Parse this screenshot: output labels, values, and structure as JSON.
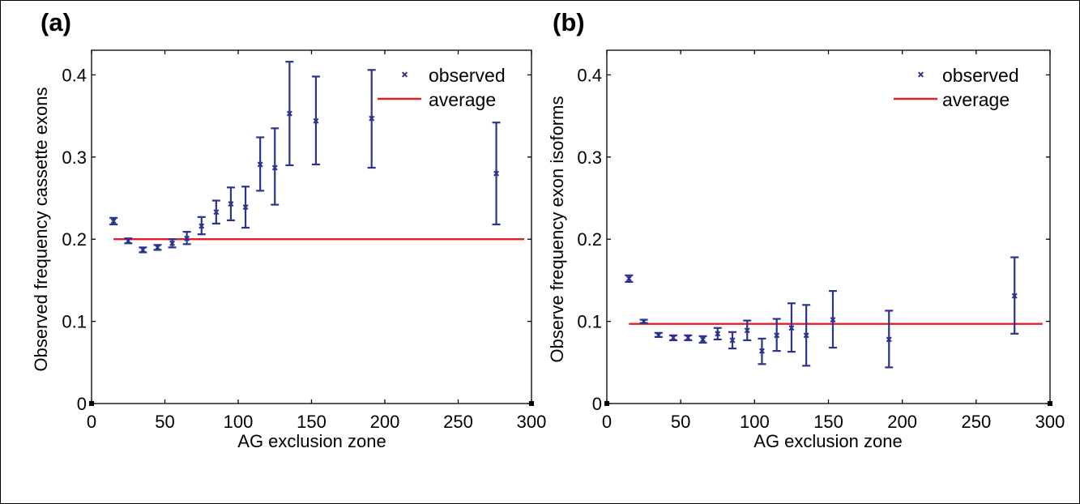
{
  "colors": {
    "observed": "#2b3390",
    "average": "#e41e25",
    "axes": "#000000"
  },
  "chart_data": [
    {
      "type": "scatter",
      "panel_label": "(a)",
      "xlabel": "AG exclusion zone",
      "ylabel": "Observed frequency cassette exons",
      "xlim": [
        0,
        300
      ],
      "ylim": [
        0,
        0.43
      ],
      "xticks": [
        0,
        50,
        100,
        150,
        200,
        250,
        300
      ],
      "xtick_labels": [
        "0",
        "50",
        "100",
        "150",
        "200",
        "250",
        "300"
      ],
      "yticks": [
        0,
        0.1,
        0.2,
        0.3,
        0.4
      ],
      "ytick_labels": [
        "0",
        "0.1",
        "0.2",
        "0.3",
        "0.4"
      ],
      "legend": {
        "position": "top-right",
        "observed_label": "observed",
        "average_label": "average"
      },
      "average": {
        "y": 0.2,
        "x_start": 15,
        "x_end": 295
      },
      "series": [
        {
          "name": "observed",
          "x": [
            15,
            25,
            35,
            45,
            55,
            65,
            75,
            85,
            95,
            105,
            115,
            125,
            135,
            153,
            191,
            276
          ],
          "y": [
            0.222,
            0.198,
            0.187,
            0.19,
            0.195,
            0.201,
            0.216,
            0.233,
            0.243,
            0.239,
            0.291,
            0.287,
            0.353,
            0.344,
            0.347,
            0.28
          ],
          "y_low": [
            0.218,
            0.195,
            0.184,
            0.187,
            0.19,
            0.194,
            0.206,
            0.219,
            0.223,
            0.214,
            0.259,
            0.242,
            0.29,
            0.291,
            0.287,
            0.218
          ],
          "y_high": [
            0.226,
            0.201,
            0.19,
            0.193,
            0.2,
            0.209,
            0.227,
            0.247,
            0.263,
            0.264,
            0.324,
            0.335,
            0.416,
            0.398,
            0.406,
            0.342
          ]
        }
      ]
    },
    {
      "type": "scatter",
      "panel_label": "(b)",
      "xlabel": "AG exclusion zone",
      "ylabel": "Observe frequency exon isoforms",
      "xlim": [
        0,
        300
      ],
      "ylim": [
        0,
        0.43
      ],
      "xticks": [
        0,
        50,
        100,
        150,
        200,
        250,
        300
      ],
      "xtick_labels": [
        "0",
        "50",
        "100",
        "150",
        "200",
        "250",
        "300"
      ],
      "yticks": [
        0,
        0.1,
        0.2,
        0.3,
        0.4
      ],
      "ytick_labels": [
        "0",
        "0.1",
        "0.2",
        "0.3",
        "0.4"
      ],
      "legend": {
        "position": "top-right",
        "observed_label": "observed",
        "average_label": "average"
      },
      "average": {
        "y": 0.097,
        "x_start": 15,
        "x_end": 295
      },
      "series": [
        {
          "name": "observed",
          "x": [
            15,
            25,
            35,
            45,
            55,
            65,
            75,
            85,
            95,
            105,
            115,
            125,
            135,
            153,
            191,
            276
          ],
          "y": [
            0.152,
            0.1,
            0.083,
            0.08,
            0.08,
            0.078,
            0.085,
            0.077,
            0.089,
            0.064,
            0.083,
            0.092,
            0.083,
            0.102,
            0.078,
            0.131
          ],
          "y_low": [
            0.148,
            0.098,
            0.081,
            0.077,
            0.077,
            0.074,
            0.078,
            0.067,
            0.077,
            0.048,
            0.064,
            0.063,
            0.046,
            0.068,
            0.044,
            0.085
          ],
          "y_high": [
            0.156,
            0.102,
            0.086,
            0.083,
            0.083,
            0.082,
            0.092,
            0.087,
            0.101,
            0.079,
            0.103,
            0.122,
            0.12,
            0.137,
            0.113,
            0.178
          ]
        }
      ]
    }
  ]
}
